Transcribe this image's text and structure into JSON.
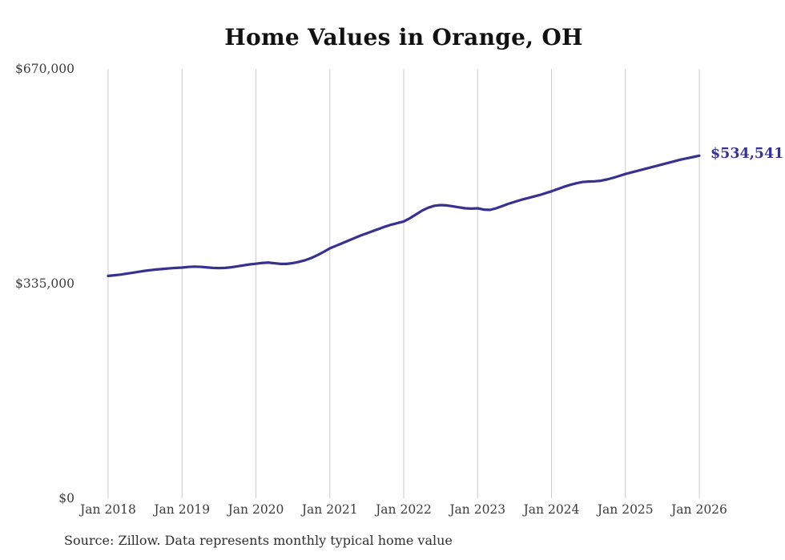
{
  "title": "Home Values in Orange, OH",
  "source_note": "Source: Zillow. Data represents monthly typical home value",
  "colors": {
    "line": "#37318f",
    "annotation": "#37318f",
    "gridline": "#cccccc",
    "axis_text": "#3d3d3d",
    "title_text": "#111111",
    "background": "#ffffff"
  },
  "chart_data": {
    "type": "line",
    "title": "Home Values in Orange, OH",
    "xlabel": "",
    "ylabel": "",
    "ylim": [
      0,
      670000
    ],
    "grid": "vertical-only",
    "legend": "none",
    "x_unit": "month",
    "x_start": "Jan 2018",
    "x_end": "Jan 2026",
    "x_tick_labels": [
      "Jan 2018",
      "Jan 2019",
      "Jan 2020",
      "Jan 2021",
      "Jan 2022",
      "Jan 2023",
      "Jan 2024",
      "Jan 2025",
      "Jan 2026"
    ],
    "y_ticks": [
      {
        "label": "$670,000",
        "value": 670000
      },
      {
        "label": "$335,000",
        "value": 335000
      },
      {
        "label": "$0",
        "value": 0
      }
    ],
    "series": [
      {
        "name": "Monthly typical home value",
        "values": [
          347000,
          348000,
          349000,
          350500,
          352000,
          353500,
          355000,
          356200,
          357200,
          358000,
          358800,
          359500,
          360000,
          361000,
          361500,
          361200,
          360300,
          359500,
          359200,
          359500,
          360500,
          362000,
          363500,
          365000,
          366000,
          367200,
          367800,
          366800,
          365800,
          365800,
          367000,
          369000,
          371500,
          375000,
          379500,
          384500,
          390000,
          394000,
          398000,
          402000,
          406000,
          410000,
          413500,
          417000,
          420500,
          424000,
          427000,
          429500,
          432000,
          437000,
          443000,
          449000,
          453500,
          456500,
          457500,
          457000,
          455500,
          454000,
          452500,
          452000,
          452500,
          450500,
          450000,
          452500,
          456000,
          459500,
          462500,
          465500,
          468000,
          470500,
          473000,
          476000,
          479000,
          482500,
          486000,
          489000,
          491500,
          493500,
          494200,
          494600,
          495500,
          497500,
          500000,
          503000,
          506000,
          508500,
          511000,
          513500,
          516000,
          518500,
          521000,
          523500,
          526000,
          528500,
          530500,
          532500,
          534541
        ]
      }
    ],
    "last_value": 534541,
    "last_value_label": "$534,541"
  }
}
